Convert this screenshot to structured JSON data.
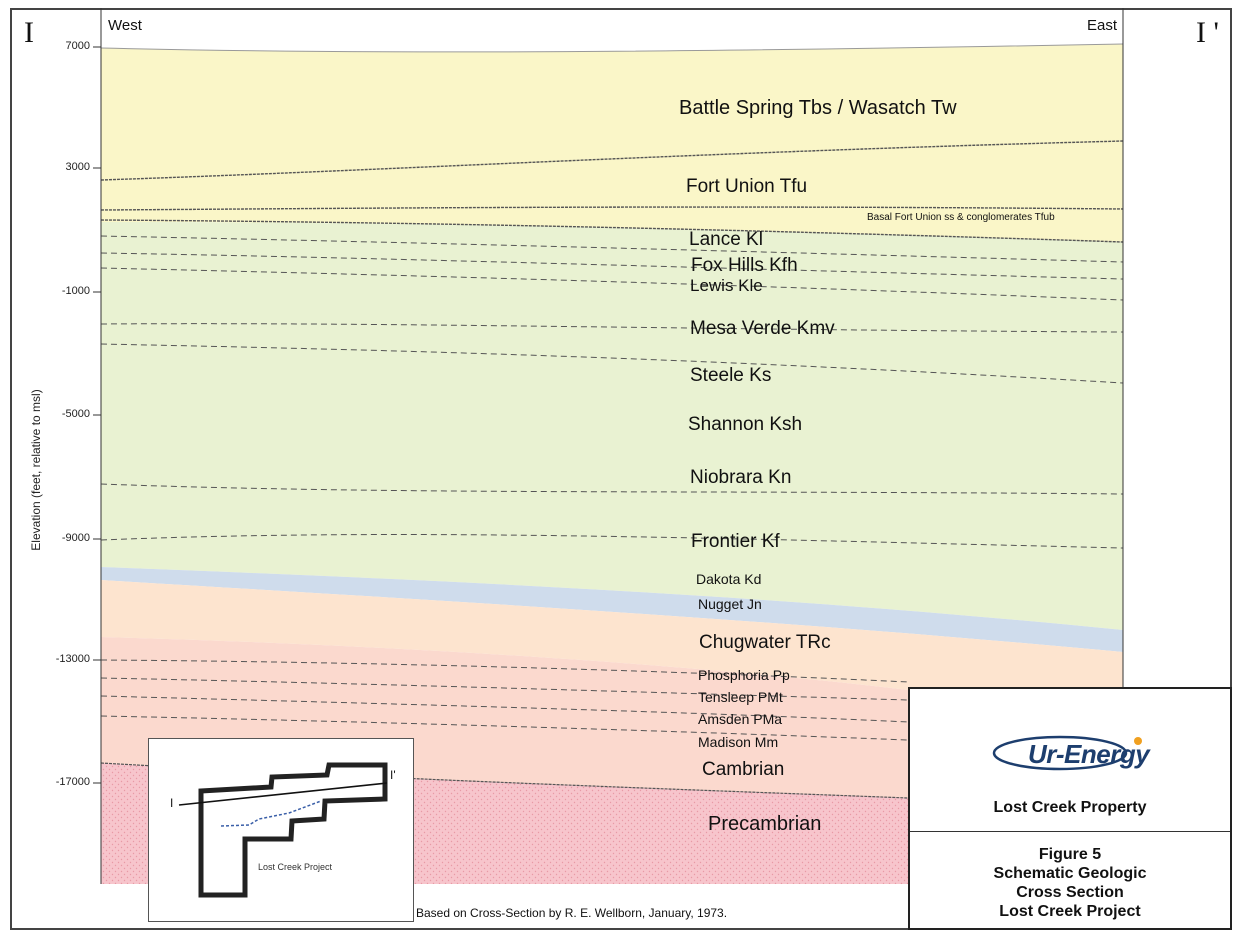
{
  "section": {
    "start_label": "I",
    "end_label": "I '",
    "west_label": "West",
    "east_label": "East",
    "y_axis_label": "Elevation (feet, relative to msl)",
    "y_ticks": [
      "7000",
      "3000",
      "-1000",
      "-5000",
      "-9000",
      "-13000",
      "-17000"
    ]
  },
  "formations": {
    "battle_spring": "Battle Spring  Tbs / Wasatch Tw",
    "fort_union": "Fort Union  Tfu",
    "basal_fort_union": "Basal Fort Union ss & conglomerates  Tfub",
    "lance": "Lance  Kl",
    "fox_hills": "Fox Hills  Kfh",
    "lewis": "Lewis  Kle",
    "mesa_verde": "Mesa Verde  Kmv",
    "steele": "Steele  Ks",
    "shannon": "Shannon  Ksh",
    "niobrara": "Niobrara  Kn",
    "frontier": "Frontier  Kf",
    "dakota": "Dakota  Kd",
    "nugget": "Nugget  Jn",
    "chugwater": "Chugwater  TRc",
    "phosphoria": "Phosphoria  Pp",
    "tensleep": "Tensleep  PMt",
    "amsden": "Amsden  PMa",
    "madison": "Madison  Mm",
    "cambrian": "Cambrian",
    "precambrian": "Precambrian"
  },
  "colors": {
    "tertiary": "#faf6c8",
    "cretaceous": "#e9f2d2",
    "dakota_nugget": "#cfdcec",
    "triassic": "#fde4cf",
    "paleozoic": "#fbd9ce",
    "precambrian": "#f7c5cc",
    "logo_blue": "#1d3e6e",
    "logo_orange": "#f0a020"
  },
  "inset": {
    "start": "I",
    "end": "I'",
    "caption": "Lost Creek Project"
  },
  "credit": "Based on Cross-Section by R. E. Wellborn, January, 1973.",
  "title_block": {
    "logo_text": "Ur-Energy",
    "property": "Lost Creek Property",
    "figure_lines": [
      "Figure 5",
      "Schematic Geologic",
      "Cross Section",
      "Lost Creek Project"
    ]
  }
}
